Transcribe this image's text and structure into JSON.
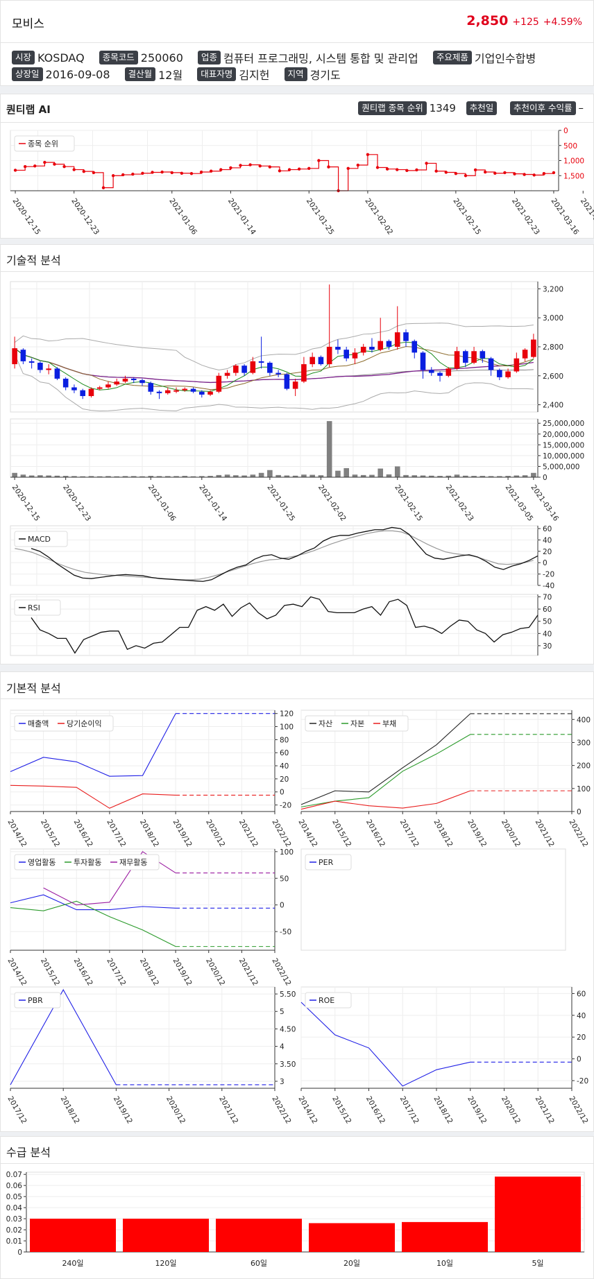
{
  "header": {
    "name": "모비스",
    "price": "2,850",
    "change": "+125",
    "change_pct": "+4.59%",
    "market_label": "시장",
    "market": "KOSDAQ",
    "code_label": "종목코드",
    "code": "250060",
    "industry_label": "업종",
    "industry": "컴퓨터 프로그래밍, 시스템 통합 및 관리업",
    "product_label": "주요제품",
    "product": "기업인수합병",
    "listed_label": "상장일",
    "listed": "2016-09-08",
    "fiscal_label": "결산월",
    "fiscal": "12월",
    "ceo_label": "대표자명",
    "ceo": "김지헌",
    "region_label": "지역",
    "region": "경기도"
  },
  "quant": {
    "title": "퀀티랩 AI",
    "rank_label": "퀀티랩 종목 순위",
    "rank": "1349",
    "rec_date_label": "추천일",
    "rec_date": "",
    "return_label": "추천이후 수익률",
    "return": "–"
  },
  "sections": {
    "tech": "기술적 분석",
    "fund": "기본적 분석",
    "supply": "수급 분석"
  },
  "dates": [
    "2020-12-15",
    "2020-12-23",
    "2021-01-06",
    "2021-01-14",
    "2021-01-25",
    "2021-02-02",
    "2021-02-15",
    "2021-02-23",
    "2021-03-05",
    "2021-03-16"
  ],
  "chart_data": [
    {
      "id": "rank",
      "type": "line",
      "legend": [
        "종목 순위"
      ],
      "y_ticks": [
        "0",
        "500",
        "1,000",
        "1,500"
      ],
      "ylim": [
        0,
        2000
      ],
      "y_inverted": true,
      "color": "#e8000b",
      "values": [
        1320,
        1200,
        1180,
        1060,
        1120,
        1200,
        1300,
        1360,
        1400,
        1900,
        1500,
        1470,
        1450,
        1420,
        1390,
        1380,
        1400,
        1420,
        1430,
        1380,
        1350,
        1300,
        1240,
        1160,
        1140,
        1180,
        1210,
        1340,
        1300,
        1280,
        1260,
        1000,
        1210,
        2000,
        1260,
        1150,
        800,
        1230,
        1280,
        1300,
        1330,
        1310,
        1090,
        1350,
        1390,
        1430,
        1500,
        1310,
        1380,
        1420,
        1400,
        1440,
        1460,
        1480,
        1430,
        1400
      ]
    },
    {
      "id": "price",
      "type": "candlestick",
      "y_ticks": [
        "2,400",
        "2,600",
        "2,800",
        "3,000",
        "3,200"
      ],
      "ylim": [
        2350,
        3250
      ],
      "candles": [
        [
          2680,
          2790,
          2870,
          2650
        ],
        [
          2780,
          2700,
          2790,
          2680
        ],
        [
          2700,
          2690,
          2720,
          2650
        ],
        [
          2690,
          2640,
          2700,
          2620
        ],
        [
          2640,
          2650,
          2680,
          2610
        ],
        [
          2650,
          2580,
          2660,
          2570
        ],
        [
          2580,
          2520,
          2590,
          2500
        ],
        [
          2520,
          2500,
          2540,
          2480
        ],
        [
          2500,
          2460,
          2510,
          2440
        ],
        [
          2460,
          2510,
          2520,
          2450
        ],
        [
          2510,
          2520,
          2530,
          2500
        ],
        [
          2520,
          2540,
          2560,
          2510
        ],
        [
          2540,
          2560,
          2580,
          2530
        ],
        [
          2560,
          2580,
          2600,
          2550
        ],
        [
          2580,
          2570,
          2590,
          2550
        ],
        [
          2570,
          2550,
          2580,
          2530
        ],
        [
          2550,
          2490,
          2560,
          2470
        ],
        [
          2490,
          2480,
          2500,
          2440
        ],
        [
          2480,
          2500,
          2520,
          2470
        ],
        [
          2500,
          2500,
          2520,
          2480
        ],
        [
          2500,
          2510,
          2520,
          2490
        ],
        [
          2510,
          2490,
          2520,
          2480
        ],
        [
          2490,
          2470,
          2500,
          2450
        ],
        [
          2470,
          2490,
          2500,
          2460
        ],
        [
          2490,
          2600,
          2620,
          2480
        ],
        [
          2600,
          2620,
          2640,
          2580
        ],
        [
          2620,
          2670,
          2680,
          2600
        ],
        [
          2670,
          2620,
          2680,
          2600
        ],
        [
          2620,
          2700,
          2730,
          2610
        ],
        [
          2700,
          2690,
          2870,
          2650
        ],
        [
          2690,
          2620,
          2700,
          2600
        ],
        [
          2620,
          2610,
          2640,
          2590
        ],
        [
          2610,
          2510,
          2620,
          2500
        ],
        [
          2510,
          2560,
          2580,
          2460
        ],
        [
          2560,
          2680,
          2730,
          2550
        ],
        [
          2680,
          2730,
          2760,
          2660
        ],
        [
          2730,
          2680,
          2740,
          2670
        ],
        [
          2680,
          2800,
          3230,
          2660
        ],
        [
          2800,
          2780,
          2850,
          2750
        ],
        [
          2780,
          2720,
          2800,
          2700
        ],
        [
          2720,
          2760,
          2790,
          2680
        ],
        [
          2760,
          2800,
          2820,
          2740
        ],
        [
          2800,
          2780,
          2860,
          2760
        ],
        [
          2780,
          2840,
          3000,
          2770
        ],
        [
          2840,
          2800,
          2850,
          2780
        ],
        [
          2800,
          2900,
          3080,
          2780
        ],
        [
          2900,
          2840,
          2920,
          2800
        ],
        [
          2840,
          2760,
          2850,
          2720
        ],
        [
          2760,
          2640,
          2770,
          2580
        ],
        [
          2640,
          2620,
          2660,
          2600
        ],
        [
          2620,
          2600,
          2630,
          2560
        ],
        [
          2600,
          2650,
          2660,
          2590
        ],
        [
          2650,
          2770,
          2800,
          2640
        ],
        [
          2770,
          2690,
          2780,
          2660
        ],
        [
          2690,
          2770,
          2800,
          2680
        ],
        [
          2770,
          2720,
          2780,
          2690
        ],
        [
          2720,
          2640,
          2730,
          2600
        ],
        [
          2640,
          2590,
          2650,
          2570
        ],
        [
          2590,
          2630,
          2650,
          2580
        ],
        [
          2630,
          2720,
          2760,
          2620
        ],
        [
          2720,
          2780,
          2790,
          2700
        ],
        [
          2730,
          2850,
          2890,
          2720
        ]
      ]
    },
    {
      "id": "volume",
      "type": "bar",
      "y_ticks": [
        "0",
        "5,000,000",
        "10,000,000",
        "15,000,000",
        "20,000,000",
        "25,000,000"
      ],
      "ylim": [
        0,
        27000000
      ],
      "values": [
        2000000,
        1200000,
        800000,
        900000,
        800000,
        700000,
        600000,
        500000,
        400000,
        500000,
        400000,
        500000,
        400000,
        500000,
        500000,
        400000,
        600000,
        500000,
        500000,
        500000,
        600000,
        400000,
        500000,
        600000,
        1000000,
        1200000,
        900000,
        800000,
        1200000,
        2000000,
        3300000,
        1000000,
        800000,
        700000,
        1200000,
        1100000,
        900000,
        26000000,
        3000000,
        4200000,
        1200000,
        1000000,
        1100000,
        4000000,
        1300000,
        5000000,
        1000000,
        900000,
        800000,
        700000,
        600000,
        700000,
        1200000,
        700000,
        600000,
        600000,
        500000,
        500000,
        600000,
        800000,
        900000,
        2000000
      ]
    },
    {
      "id": "macd",
      "type": "line",
      "legend": [
        "MACD"
      ],
      "y_ticks": [
        "-40",
        "-20",
        "0",
        "20",
        "40",
        "60"
      ],
      "ylim": [
        -40,
        65
      ],
      "values": [
        25,
        20,
        10,
        -2,
        -12,
        -22,
        -27,
        -28,
        -26,
        -24,
        -22,
        -21,
        -22,
        -23,
        -26,
        -28,
        -29,
        -30,
        -31,
        -32,
        -33,
        -30,
        -22,
        -14,
        -8,
        -4,
        6,
        12,
        14,
        8,
        6,
        12,
        20,
        26,
        38,
        45,
        48,
        48,
        52,
        55,
        58,
        58,
        62,
        60,
        50,
        32,
        15,
        8,
        6,
        9,
        12,
        14,
        10,
        2,
        -8,
        -12,
        -6,
        -2,
        4,
        12
      ],
      "signal": [
        25,
        22,
        18,
        12,
        5,
        -2,
        -8,
        -13,
        -17,
        -19,
        -21,
        -22,
        -23,
        -24,
        -25,
        -26,
        -27,
        -28,
        -29,
        -30,
        -30,
        -29,
        -26,
        -22,
        -17,
        -12,
        -7,
        -2,
        2,
        5,
        6,
        9,
        12,
        16,
        21,
        27,
        33,
        38,
        43,
        47,
        51,
        54,
        56,
        56,
        54,
        48,
        40,
        32,
        25,
        19,
        16,
        14,
        12,
        8,
        3,
        -2,
        -3,
        -2,
        0,
        4
      ]
    },
    {
      "id": "rsi",
      "type": "line",
      "legend": [
        "RSI"
      ],
      "y_ticks": [
        "30",
        "40",
        "50",
        "60",
        "70"
      ],
      "ylim": [
        22,
        72
      ],
      "values": [
        53,
        43,
        40,
        36,
        36,
        24,
        35,
        38,
        41,
        42,
        42,
        27,
        30,
        28,
        32,
        33,
        39,
        45,
        45,
        59,
        62,
        59,
        64,
        54,
        61,
        65,
        57,
        52,
        55,
        63,
        64,
        62,
        70,
        68,
        58,
        57,
        57,
        57,
        60,
        62,
        55,
        66,
        68,
        63,
        45,
        46,
        44,
        40,
        46,
        51,
        50,
        43,
        40,
        33,
        39,
        41,
        44,
        45,
        55
      ]
    },
    {
      "id": "sales",
      "type": "line",
      "legend": [
        "매출액",
        "당기순이익"
      ],
      "categories": [
        "2014/12",
        "2015/12",
        "2016/12",
        "2017/12",
        "2018/12",
        "2019/12",
        "2020/12",
        "2021/12",
        "2022/12"
      ],
      "y_ticks": [
        "-20",
        "0",
        "20",
        "40",
        "60",
        "80",
        "100",
        "120"
      ],
      "ylim": [
        -30,
        125
      ],
      "series": [
        {
          "name": "매출액",
          "color": "#1f1fe6",
          "values": [
            31,
            53,
            46,
            24,
            25,
            120,
            120,
            120,
            120
          ]
        },
        {
          "name": "당기순이익",
          "color": "#e81c1c",
          "values": [
            10,
            9,
            7,
            -25,
            -3,
            -5,
            -5,
            -5,
            -5
          ]
        }
      ]
    },
    {
      "id": "assets",
      "type": "line",
      "legend": [
        "자산",
        "자본",
        "부채"
      ],
      "categories": [
        "2014/12",
        "2015/12",
        "2016/12",
        "2017/12",
        "2018/12",
        "2019/12",
        "2020/12",
        "2021/12",
        "2022/12"
      ],
      "y_ticks": [
        "0",
        "100",
        "200",
        "300",
        "400"
      ],
      "ylim": [
        0,
        440
      ],
      "series": [
        {
          "name": "자산",
          "color": "#222",
          "values": [
            30,
            90,
            85,
            190,
            290,
            425,
            425,
            425,
            425
          ]
        },
        {
          "name": "자본",
          "color": "#2a9a2a",
          "values": [
            20,
            45,
            60,
            175,
            250,
            335,
            335,
            335,
            335
          ]
        },
        {
          "name": "부채",
          "color": "#e81c1c",
          "values": [
            10,
            45,
            25,
            15,
            35,
            90,
            90,
            90,
            90
          ]
        }
      ]
    },
    {
      "id": "cashflow",
      "type": "line",
      "legend": [
        "영업활동",
        "투자활동",
        "재무활동"
      ],
      "categories": [
        "2014/12",
        "2015/12",
        "2016/12",
        "2017/12",
        "2018/12",
        "2019/12",
        "2020/12",
        "2021/12",
        "2022/12"
      ],
      "y_ticks": [
        "-50",
        "0",
        "50",
        "100"
      ],
      "ylim": [
        -85,
        105
      ],
      "series": [
        {
          "name": "영업활동",
          "color": "#1f1fe6",
          "values": [
            4,
            19,
            -9,
            -9,
            -3,
            -6,
            -6,
            -6,
            -6
          ]
        },
        {
          "name": "투자활동",
          "color": "#2a9a2a",
          "values": [
            -5,
            -11,
            7,
            -22,
            -47,
            -78,
            -78,
            -78,
            -78
          ]
        },
        {
          "name": "재무활동",
          "color": "#9a1aa0",
          "values": [
            null,
            32,
            0,
            5,
            100,
            60,
            60,
            60,
            60
          ]
        }
      ]
    },
    {
      "id": "per",
      "type": "line",
      "legend": [
        "PER"
      ],
      "series": [
        {
          "name": "PER",
          "color": "#1f1fe6",
          "values": []
        }
      ]
    },
    {
      "id": "pbr",
      "type": "line",
      "legend": [
        "PBR"
      ],
      "categories": [
        "2017/12",
        "2018/12",
        "2019/12",
        "2020/12",
        "2021/12",
        "2022/12"
      ],
      "y_ticks": [
        "3",
        "3.50",
        "4",
        "4.50",
        "5",
        "5.50"
      ],
      "ylim": [
        2.8,
        5.7
      ],
      "series": [
        {
          "name": "PBR",
          "color": "#1f1fe6",
          "values": [
            2.9,
            5.62,
            2.9,
            2.9,
            2.9,
            2.9
          ]
        }
      ]
    },
    {
      "id": "roe",
      "type": "line",
      "legend": [
        "ROE"
      ],
      "categories": [
        "2014/12",
        "2015/12",
        "2016/12",
        "2017/12",
        "2018/12",
        "2019/12",
        "2020/12",
        "2021/12",
        "2022/12"
      ],
      "y_ticks": [
        "-20",
        "0",
        "20",
        "40",
        "60"
      ],
      "ylim": [
        -27,
        66
      ],
      "series": [
        {
          "name": "ROE",
          "color": "#1f1fe6",
          "values": [
            52,
            22,
            10,
            -25,
            -10,
            -3,
            -3,
            -3,
            -3
          ]
        }
      ]
    },
    {
      "id": "supply",
      "type": "bar",
      "categories": [
        "240일",
        "120일",
        "60일",
        "20일",
        "10일",
        "5일"
      ],
      "values": [
        0.03,
        0.03,
        0.03,
        0.026,
        0.027,
        0.068
      ],
      "y_ticks": [
        "0",
        "0.01",
        "0.02",
        "0.03",
        "0.04",
        "0.05",
        "0.06",
        "0.07"
      ],
      "ylim": [
        0,
        0.072
      ],
      "color": "#ff0000"
    }
  ]
}
